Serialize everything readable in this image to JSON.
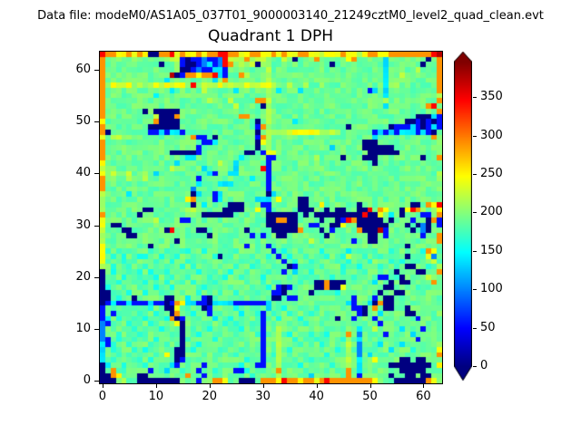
{
  "header": {
    "datafile_label": "Data file: modeM0/AS1A05_037T01_9000003140_21249cztM0_level2_quad_clean.evt"
  },
  "chart_data": {
    "type": "heatmap",
    "title": "Quadrant 1 DPH",
    "xlabel": "",
    "ylabel": "",
    "x_ticks": [
      0,
      10,
      20,
      30,
      40,
      50,
      60
    ],
    "y_ticks": [
      0,
      10,
      20,
      30,
      40,
      50,
      60
    ],
    "xlim": [
      -0.5,
      63.5
    ],
    "ylim": [
      -0.5,
      63.5
    ],
    "grid_size": 64,
    "colormap": "jet",
    "vmin": 0,
    "vmax": 396,
    "colorbar": {
      "ticks": [
        0,
        50,
        100,
        150,
        200,
        250,
        300,
        350
      ],
      "extend": "both",
      "over_color": "#800000",
      "under_color": "#000080"
    },
    "value_map": {
      ".": 0,
      "1": 55,
      "2": 100,
      "3": 138,
      "4": 168,
      "5": 190,
      "6": 215,
      "7": 245,
      "8": 290,
      "9": 345,
      "A": 375
    },
    "noise_amp": {
      "3": 8,
      "4": 14,
      "5": 14,
      "6": 14,
      "7": 8
    },
    "rows_top_to_bottom": [
      "988778787..8897877878899887788778787788776777877678877888888889A",
      "855655655555666 1.112112966686666 5565.556855555785555535555555.58",
      "85555555555.5561..12312986666.66555555555 55.555555555355 5555.558",
      "855555555555556..1211331655555565555555555555555555553555 5565558",
      "8555555555555A.188788931558655565555555555555555555553556 5555558",
      "855555555555355555555368555555565555555555555555555553555 5555558",
      "867667666676767769666676666766776556556556555655555553665 5555558",
      "855555555555535555565555535555565355535555555555551353555 5555558",
      "855555555535555565555555555555565555555555555555555553555 5555556",
      "855555555555555555556555655558865555555555555555555556555 5555558",
      "8555555555555555555555555655 55.6555555555555555555555355 5555589",
      "85555555.5.....555555555555555565555555555555555555555555 5555558",
      "85555555556...8555555555558855565555555555555555555555555 55...31",
      "75555555558....55555555555555.565555355555555555555555555 ..1.1.1",
      "855555555......5555555555555518655555555555555.5555555.1  1131.131",
      "8.55555551131331555555555 5555.56666677777666655555513131 333131.",
      "756656555555555558115.5555555186555555555555555555535555 5555558",
      "855555555555555555511355 55555.7655555555555555555...55555 5555556",
      "8555555555555555551555555 5555.565555555555535555 5......5555555556",
      "8555555555555.....155555555..51775555555555555555 5......5555555556",
      "855555555555555533555555553555611555555565555.555...55555 555.558",
      "7555555555555535555555655355555155555555555555555 55.555555 5555555",
      "655555555555565555535555535555915555555555555555555555555 5555555",
      "756556556535555555553155335555515555555555555555555555555 5555556",
      "856556556555555555155555555535515555555555555555555555555 5555556",
      "855555555555555555355533355555515555555555555555555555555 5555555",
      "855555555555555552555555555555515555555555555555555555555 5555555",
      "6555535555555555 5.35513555 55555.3555555555555555555555555 5555555",
      "6555555555555555785551355555533357555..5555555555555555555 5555555",
      "655555555555555 55.535555...555115 5555..557556555.5555555 55..5879",
      "65555555..5555556655555....55751 55555...55.5..55..958755.7986567",
      "8555555.55555555555......555555......5.5.........9..7535.5551158",
      "755555555565555115555555 5555555..88..5555.55.198.....5.555155.81",
      "75..5555555555555555555555 55555......551155..755......555.5.2.51",
      "6555..555555.95555..5555555.5555.....8555.5155558...A15555.52.55",
      "65555..555555555 5555.55555551515 5..5555555.5555555..51555 5551558",
      "65555555555555.5555555555555555555555556555555 5155..55555 5555558",
      "755555555.5555555555555555515551555555555555555555 5555555.5555558",
      "745454555455455445545545545554551545545554555535455455455 4554875",
      "754545544554554554555 4.5455545545154554555455465545545555.455725",
      "745545455545545545545554554554555515455445554545554655454 5545564",
      "6545545545554554545555455455455 5455.154554555455455545545..55456",
      ".545545454554555554554554554555454153554554554555455455.555..558",
      ".545455455455455455545545545554555545545455455545555115 4.5555655",
      ".554554545554554545554555554554545555455..8...55555355.5..555585",
      ".455455455455455555455454555455451.15555..8..7555 5555..555545555",
      "..4554554554555455455545545554551 1.5555.555545555 555.55..5555555",
      "..5455.55555..563551.55555555555..51155555555551 55515..555555555",
      ".131131113 11.1873311.33331111113555555555555553155 3.8..55555555",
      "154554555455..75455.1555545545535545545545555451 1.585..55.555555",
      "1515455455455.8554551545553554154554555455555555 1.5535555..55556",
      "13545545455548.1554553554555551554555455 5555.5515551555555515555",
      "214554555455557.5554555454554515455555455455555555551555 55555555",
      "254555455554555.5455455555455515565545555554556535565555 3555155 5",
      "255455544555545.5545554554555415565455545545558525555155 55355555",
      "215455455545555.4555545555455515565545554555546535554555 55515555",
      "314554555455455.5545555445545515565554555455556525553555 35555556",
      "35455545455554..5455554555455415565455555555456525545535 55455557",
      "35545455554575..5554555554555515465555455545556525355555 55555558",
      "35455554545555.155455455555455155655455454555565 35575555..5..555",
      ".3554555455553154551554555455115565554555554556535555 5........57",
      ".585455551553554551554555114555558555545555545853555555 5.....555",
      "..87555..5555555855155555555455556555553555554851 55555.55..5..55",
      "...5655........555155887 55...5888798878878988888888755 5......87"
    ]
  }
}
